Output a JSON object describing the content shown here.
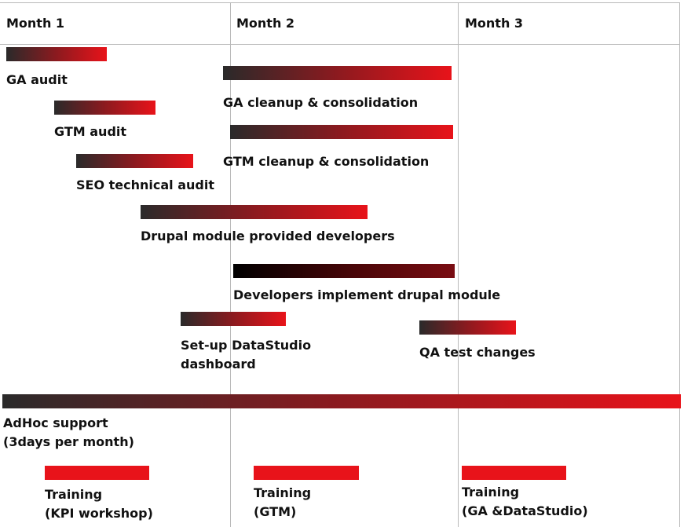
{
  "months": [
    "Month 1",
    "Month 2",
    "Month 3"
  ],
  "tasks": [
    {
      "id": "ga-audit",
      "label": [
        "GA audit"
      ]
    },
    {
      "id": "ga-cleanup",
      "label": [
        "GA cleanup & consolidation"
      ]
    },
    {
      "id": "gtm-audit",
      "label": [
        "GTM audit"
      ]
    },
    {
      "id": "gtm-cleanup",
      "label": [
        "GTM cleanup & consolidation"
      ]
    },
    {
      "id": "seo-audit",
      "label": [
        "SEO technical audit"
      ]
    },
    {
      "id": "drupal-module",
      "label": [
        "Drupal module provided developers"
      ]
    },
    {
      "id": "dev-implement",
      "label": [
        "Developers implement drupal module"
      ]
    },
    {
      "id": "datastudio",
      "label": [
        "Set-up DataStudio",
        "dashboard"
      ]
    },
    {
      "id": "qa",
      "label": [
        "QA test changes"
      ]
    },
    {
      "id": "adhoc",
      "label": [
        "AdHoc support",
        "(3days per month)"
      ]
    },
    {
      "id": "training-1",
      "label": [
        "Training",
        "(KPI workshop)"
      ]
    },
    {
      "id": "training-2",
      "label": [
        "Training",
        "(GTM)"
      ]
    },
    {
      "id": "training-3",
      "label": [
        "Training",
        "(GA &DataStudio)"
      ]
    }
  ],
  "colors": {
    "bar_start": "#2a2a2a",
    "bar_end": "#e8131a",
    "bar_dark": "#000000",
    "grid": "#b9b9b9"
  }
}
